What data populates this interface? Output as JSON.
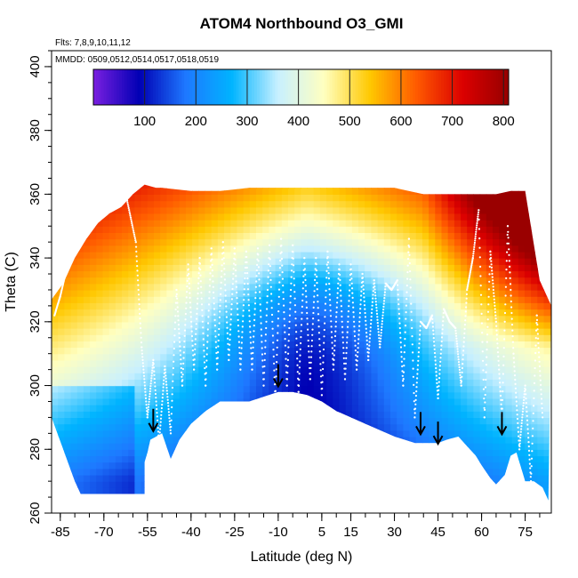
{
  "chart_data": {
    "type": "heatmap",
    "title": "ATOM4 Northbound O3_GMI",
    "annotations": {
      "flights": "Flts: 7,8,9,10,11,12",
      "dates": "MMDD: 0509,0512,0514,0517,0518,0519"
    },
    "xlabel": "Latitude (deg N)",
    "ylabel": "Theta (C)",
    "xlim": [
      -88,
      84
    ],
    "ylim": [
      260,
      405
    ],
    "x_ticks": [
      -85,
      -70,
      -55,
      -40,
      -25,
      -10,
      5,
      15,
      30,
      45,
      60,
      75
    ],
    "x_tick_labels": [
      "-85",
      "-70",
      "-55",
      "-40",
      "-25",
      "-10",
      "5",
      "15",
      "30",
      "45",
      "60",
      "75"
    ],
    "y_ticks": [
      260,
      280,
      300,
      320,
      340,
      360,
      380,
      400
    ],
    "y_tick_labels": [
      "260",
      "280",
      "300",
      "320",
      "340",
      "360",
      "380",
      "400"
    ],
    "colorbar": {
      "range": [
        0,
        810
      ],
      "ticks": [
        100,
        200,
        300,
        400,
        500,
        600,
        700,
        800
      ],
      "tick_labels": [
        "100",
        "200",
        "300",
        "400",
        "500",
        "600",
        "700",
        "800"
      ],
      "colors": [
        "#7a1fe0",
        "#0000b4",
        "#1e78ff",
        "#00b4ff",
        "#c8f0ff",
        "#ffffc0",
        "#ffc800",
        "#ff5a00",
        "#dc0000",
        "#960000"
      ]
    },
    "surface": {
      "lat": [
        -88,
        -86,
        -84,
        -82,
        -80,
        -78,
        -70,
        -62,
        -56,
        -56,
        -55,
        -54,
        -50,
        -47,
        -44,
        -40,
        -35,
        -30,
        -20,
        -10,
        -5,
        0,
        5,
        10,
        20,
        30,
        37,
        40,
        45,
        48,
        52,
        55,
        58,
        60,
        63,
        65,
        68,
        70,
        72,
        75,
        78,
        81,
        83
      ],
      "theta": [
        290,
        285,
        280,
        275,
        270,
        266,
        266,
        266,
        266,
        276,
        279,
        283,
        285,
        277,
        283,
        288,
        292,
        295,
        295,
        298,
        298,
        297,
        295,
        292,
        288,
        284,
        282,
        282,
        282,
        283,
        284,
        281,
        278,
        275,
        271,
        269,
        272,
        278,
        279,
        270,
        270,
        268,
        264
      ]
    },
    "top": {
      "lat": [
        -88,
        -84,
        -80,
        -76,
        -72,
        -68,
        -64,
        -60,
        -56,
        -52,
        -50,
        -40,
        -30,
        -20,
        -10,
        0,
        10,
        20,
        30,
        40,
        45,
        50,
        55,
        60,
        65,
        70,
        75,
        80,
        84
      ],
      "theta": [
        327,
        332,
        340,
        346,
        351,
        354,
        356,
        360,
        363,
        362,
        362,
        361,
        361,
        362,
        362,
        362,
        362,
        362,
        362,
        360,
        360,
        360,
        360,
        360,
        360,
        361,
        361,
        333,
        325
      ]
    },
    "tropopause_traces": {
      "lat": [
        -87,
        -85,
        -83,
        -80,
        -77,
        -74,
        -71,
        -68,
        -65,
        -62,
        -59,
        -57,
        -55,
        -53,
        -51,
        -49,
        -47,
        -45,
        -43,
        -41,
        -39,
        -37,
        -35,
        -33,
        -31,
        -29,
        -27,
        -25,
        -23,
        -21,
        -19,
        -17,
        -15,
        -13,
        -11,
        -9,
        -7,
        -5,
        -3,
        -1,
        1,
        3,
        5,
        7,
        9,
        11,
        13,
        15,
        17,
        19,
        21,
        23,
        25,
        27,
        29,
        31,
        33,
        35,
        37,
        39,
        41,
        43,
        45,
        47,
        49,
        51,
        53,
        55,
        57,
        59,
        61,
        63,
        65,
        67,
        69,
        71,
        73,
        75,
        77,
        79,
        81
      ],
      "theta": [
        322,
        328,
        336,
        343,
        350,
        355,
        360,
        364,
        362,
        358,
        345,
        312,
        290,
        308,
        282,
        306,
        285,
        330,
        300,
        338,
        305,
        340,
        300,
        343,
        305,
        345,
        308,
        343,
        305,
        342,
        305,
        343,
        300,
        344,
        296,
        346,
        300,
        344,
        298,
        340,
        302,
        340,
        297,
        342,
        305,
        338,
        302,
        338,
        305,
        335,
        308,
        333,
        312,
        332,
        330,
        333,
        300,
        346,
        290,
        320,
        318,
        322,
        296,
        324,
        320,
        318,
        300,
        330,
        340,
        355,
        290,
        342,
        320,
        290,
        350,
        310,
        280,
        300,
        270,
        322,
        290
      ]
    },
    "arrows": [
      {
        "lat": -53,
        "theta": 286
      },
      {
        "lat": -10,
        "theta": 300
      },
      {
        "lat": 39,
        "theta": 285
      },
      {
        "lat": 45,
        "theta": 282
      },
      {
        "lat": 67,
        "theta": 285
      }
    ],
    "field_model": "GMI modeled ozone (ppbv): low values at lower theta rising to high values in the northern lower stratosphere",
    "grid": false,
    "legend": "top"
  }
}
